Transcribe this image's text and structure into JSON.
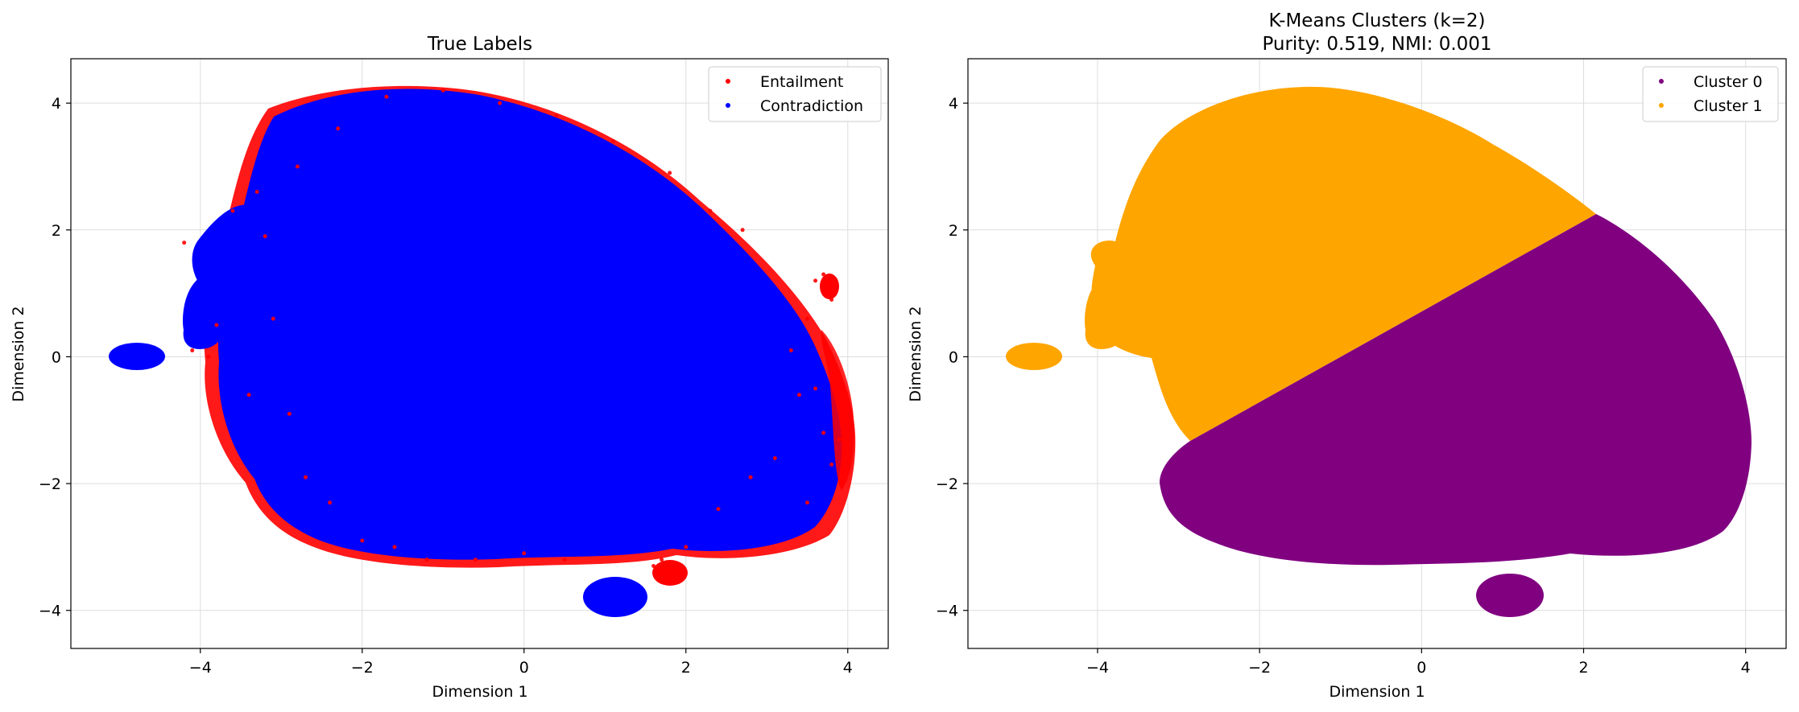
{
  "chart_data": [
    {
      "type": "scatter",
      "title": "True Labels",
      "xlabel": "Dimension 1",
      "ylabel": "Dimension 2",
      "xlim": [
        -5.6,
        4.5
      ],
      "ylim": [
        -4.6,
        4.7
      ],
      "xticks": [
        -4,
        -2,
        0,
        2,
        4
      ],
      "yticks": [
        -4,
        -2,
        0,
        2,
        4
      ],
      "grid": true,
      "legend": "top-right",
      "series": [
        {
          "name": "Entailment",
          "color": "#ff0000",
          "points": [
            [
              -3.3,
              2.6
            ],
            [
              -3.2,
              1.9
            ],
            [
              -3.1,
              0.6
            ],
            [
              -2.9,
              -0.9
            ],
            [
              -2.7,
              -1.9
            ],
            [
              -2.4,
              -2.3
            ],
            [
              -2.0,
              -2.9
            ],
            [
              -1.6,
              -3.0
            ],
            [
              -1.2,
              -3.2
            ],
            [
              -0.6,
              -3.2
            ],
            [
              0.0,
              -3.1
            ],
            [
              0.5,
              -3.2
            ],
            [
              1.6,
              -3.3
            ],
            [
              1.8,
              -3.5
            ],
            [
              1.7,
              -3.2
            ],
            [
              2.0,
              -3.0
            ],
            [
              2.4,
              -2.4
            ],
            [
              2.8,
              -1.9
            ],
            [
              3.1,
              -1.6
            ],
            [
              3.4,
              -0.6
            ],
            [
              3.5,
              0.6
            ],
            [
              3.6,
              1.2
            ],
            [
              3.7,
              1.3
            ],
            [
              3.8,
              0.9
            ],
            [
              3.6,
              -0.5
            ],
            [
              3.7,
              -1.2
            ],
            [
              3.8,
              -1.7
            ],
            [
              3.9,
              -1.3
            ],
            [
              3.5,
              -2.3
            ],
            [
              2.7,
              2.0
            ],
            [
              2.3,
              2.3
            ],
            [
              1.8,
              2.9
            ],
            [
              1.1,
              3.4
            ],
            [
              0.4,
              3.8
            ],
            [
              -0.3,
              4.0
            ],
            [
              -1.0,
              4.2
            ],
            [
              -1.7,
              4.1
            ],
            [
              -2.3,
              3.6
            ],
            [
              -2.8,
              3.0
            ],
            [
              -3.6,
              2.3
            ],
            [
              -4.2,
              1.8
            ],
            [
              -3.9,
              0.0
            ],
            [
              -4.1,
              0.1
            ],
            [
              -3.8,
              0.5
            ],
            [
              -3.4,
              -0.6
            ],
            [
              3.3,
              0.1
            ]
          ]
        },
        {
          "name": "Contradiction",
          "color": "#0000ff",
          "points": []
        }
      ]
    },
    {
      "type": "scatter",
      "title": "K-Means Clusters (k=2)",
      "subtitle": "Purity: 0.519, NMI: 0.001",
      "xlabel": "Dimension 1",
      "ylabel": "Dimension 2",
      "xlim": [
        -5.6,
        4.5
      ],
      "ylim": [
        -4.6,
        4.7
      ],
      "xticks": [
        -4,
        -2,
        0,
        2,
        4
      ],
      "yticks": [
        -4,
        -2,
        0,
        2,
        4
      ],
      "grid": true,
      "legend": "top-right",
      "series": [
        {
          "name": "Cluster 0",
          "color": "#800080",
          "points": []
        },
        {
          "name": "Cluster 1",
          "color": "#ffa500",
          "points": []
        }
      ]
    }
  ]
}
